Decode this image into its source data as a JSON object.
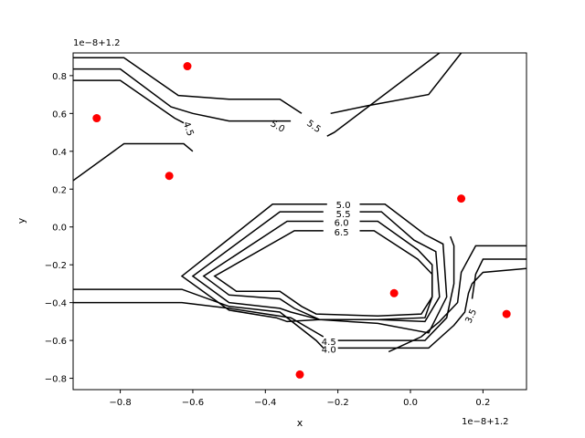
{
  "chart_data": {
    "type": "contour",
    "xlabel": "x",
    "ylabel": "y",
    "x_offset_label": "1e−8+1.2",
    "y_offset_label": "1e−8+1.2",
    "xlim": [
      -0.93,
      0.32
    ],
    "ylim": [
      -0.86,
      0.92
    ],
    "x_ticks": [
      -0.8,
      -0.6,
      -0.4,
      -0.2,
      0.0,
      0.2
    ],
    "x_tick_labels": [
      "−0.8",
      "−0.6",
      "−0.4",
      "−0.2",
      "0.0",
      "0.2"
    ],
    "y_ticks": [
      -0.8,
      -0.6,
      -0.4,
      -0.2,
      0.0,
      0.2,
      0.4,
      0.6,
      0.8
    ],
    "y_tick_labels": [
      "−0.8",
      "−0.6",
      "−0.4",
      "−0.2",
      "0.0",
      "0.2",
      "0.4",
      "0.6",
      "0.8"
    ],
    "grid": false,
    "contour_color": "#000000",
    "point_color": "#ff0000",
    "points": {
      "x": [
        -0.865,
        -0.615,
        -0.665,
        -0.045,
        0.14,
        0.265,
        -0.305
      ],
      "y": [
        0.575,
        0.85,
        0.27,
        -0.35,
        0.15,
        -0.46,
        -0.78
      ]
    },
    "contour_lines": [
      {
        "level": "4.5",
        "points": [
          [
            -0.93,
            0.775
          ],
          [
            -0.8,
            0.775
          ],
          [
            -0.65,
            0.575
          ],
          [
            -0.625,
            0.55
          ]
        ]
      },
      {
        "level": "4.5",
        "points": [
          [
            -0.6,
            0.4
          ],
          [
            -0.625,
            0.44
          ],
          [
            -0.79,
            0.44
          ],
          [
            -0.93,
            0.245
          ]
        ]
      },
      {
        "level": "5.0",
        "points": [
          [
            -0.93,
            0.835
          ],
          [
            -0.8,
            0.835
          ],
          [
            -0.66,
            0.635
          ],
          [
            -0.6,
            0.6
          ],
          [
            -0.5,
            0.56
          ],
          [
            -0.33,
            0.56
          ]
        ]
      },
      {
        "level": "5.0",
        "points": [
          [
            -0.22,
            0.6
          ],
          [
            -0.12,
            0.64
          ],
          [
            0.05,
            0.7
          ],
          [
            0.14,
            0.92
          ]
        ]
      },
      {
        "level": "5.5",
        "points": [
          [
            -0.93,
            0.895
          ],
          [
            -0.79,
            0.895
          ],
          [
            -0.64,
            0.695
          ],
          [
            -0.5,
            0.675
          ],
          [
            -0.36,
            0.675
          ],
          [
            -0.3,
            0.6
          ]
        ]
      },
      {
        "level": "5.5",
        "points": [
          [
            -0.23,
            0.48
          ],
          [
            -0.21,
            0.5
          ],
          [
            0.08,
            0.92
          ]
        ]
      },
      {
        "level": "3.5",
        "points": [
          [
            0.32,
            -0.1
          ],
          [
            0.18,
            -0.1
          ],
          [
            0.14,
            -0.24
          ],
          [
            0.13,
            -0.4
          ],
          [
            0.08,
            -0.5
          ],
          [
            0.03,
            -0.58
          ],
          [
            -0.06,
            -0.66
          ]
        ]
      },
      {
        "level": "3.5",
        "points": [
          [
            0.32,
            -0.17
          ],
          [
            0.2,
            -0.17
          ],
          [
            0.18,
            -0.25
          ],
          [
            0.17,
            -0.38
          ]
        ]
      },
      {
        "level": "4.0",
        "points": [
          [
            -0.93,
            -0.33
          ],
          [
            -0.63,
            -0.33
          ],
          [
            -0.5,
            -0.42
          ],
          [
            -0.36,
            -0.45
          ],
          [
            -0.26,
            -0.6
          ],
          [
            -0.24,
            -0.64
          ]
        ]
      },
      {
        "level": "4.0",
        "points": [
          [
            -0.2,
            -0.64
          ],
          [
            -0.1,
            -0.64
          ],
          [
            0.05,
            -0.64
          ],
          [
            0.12,
            -0.52
          ],
          [
            0.15,
            -0.45
          ],
          [
            0.16,
            -0.35
          ],
          [
            0.17,
            -0.3
          ],
          [
            0.2,
            -0.24
          ],
          [
            0.32,
            -0.22
          ]
        ]
      },
      {
        "level": "4.5",
        "points": [
          [
            -0.93,
            -0.4
          ],
          [
            -0.63,
            -0.4
          ],
          [
            -0.5,
            -0.43
          ],
          [
            -0.33,
            -0.48
          ],
          [
            -0.24,
            -0.58
          ]
        ]
      },
      {
        "level": "4.5",
        "points": [
          [
            -0.2,
            -0.6
          ],
          [
            0.04,
            -0.6
          ],
          [
            0.1,
            -0.48
          ],
          [
            0.12,
            -0.3
          ],
          [
            0.12,
            -0.1
          ],
          [
            0.11,
            -0.05
          ]
        ]
      },
      {
        "level": "5.0",
        "points": [
          [
            -0.23,
            0.12
          ],
          [
            -0.38,
            0.12
          ],
          [
            -0.63,
            -0.26
          ],
          [
            -0.5,
            -0.44
          ],
          [
            -0.37,
            -0.48
          ],
          [
            -0.34,
            -0.5
          ],
          [
            -0.25,
            -0.49
          ],
          [
            -0.09,
            -0.51
          ],
          [
            0.05,
            -0.56
          ],
          [
            0.1,
            -0.37
          ],
          [
            0.09,
            -0.09
          ],
          [
            0.04,
            -0.04
          ],
          [
            -0.07,
            0.12
          ],
          [
            -0.14,
            0.12
          ]
        ]
      },
      {
        "level": "5.5",
        "points": [
          [
            -0.24,
            0.08
          ],
          [
            -0.36,
            0.08
          ],
          [
            -0.6,
            -0.26
          ],
          [
            -0.5,
            -0.4
          ],
          [
            -0.36,
            -0.43
          ],
          [
            -0.33,
            -0.45
          ],
          [
            -0.25,
            -0.49
          ],
          [
            -0.09,
            -0.49
          ],
          [
            0.04,
            -0.5
          ],
          [
            0.08,
            -0.37
          ],
          [
            0.07,
            -0.13
          ],
          [
            0.01,
            -0.07
          ],
          [
            -0.08,
            0.08
          ],
          [
            -0.14,
            0.08
          ]
        ]
      },
      {
        "level": "6.0",
        "points": [
          [
            -0.24,
            0.03
          ],
          [
            -0.34,
            0.03
          ],
          [
            -0.57,
            -0.26
          ],
          [
            -0.5,
            -0.36
          ],
          [
            -0.36,
            -0.38
          ],
          [
            -0.32,
            -0.43
          ],
          [
            -0.25,
            -0.49
          ],
          [
            -0.09,
            -0.49
          ],
          [
            0.04,
            -0.48
          ],
          [
            0.06,
            -0.37
          ],
          [
            0.06,
            -0.2
          ],
          [
            0.02,
            -0.12
          ],
          [
            -0.09,
            0.03
          ],
          [
            -0.14,
            0.03
          ]
        ]
      },
      {
        "level": "6.5",
        "points": [
          [
            -0.24,
            -0.02
          ],
          [
            -0.32,
            -0.02
          ],
          [
            -0.54,
            -0.26
          ],
          [
            -0.48,
            -0.34
          ],
          [
            -0.36,
            -0.34
          ],
          [
            -0.3,
            -0.42
          ],
          [
            -0.26,
            -0.46
          ],
          [
            -0.09,
            -0.47
          ],
          [
            0.03,
            -0.46
          ],
          [
            0.06,
            -0.37
          ],
          [
            0.06,
            -0.25
          ],
          [
            0.02,
            -0.17
          ],
          [
            -0.1,
            -0.02
          ],
          [
            -0.14,
            -0.02
          ]
        ]
      }
    ],
    "contour_labels": [
      {
        "text": "4.5",
        "x": -0.61,
        "y": 0.52,
        "angle": 70
      },
      {
        "text": "5.0",
        "x": -0.365,
        "y": 0.535,
        "angle": 30
      },
      {
        "text": "5.5",
        "x": -0.265,
        "y": 0.535,
        "angle": 35
      },
      {
        "text": "5.0",
        "x": -0.185,
        "y": 0.12,
        "angle": 0
      },
      {
        "text": "5.5",
        "x": -0.185,
        "y": 0.07,
        "angle": 0
      },
      {
        "text": "6.0",
        "x": -0.19,
        "y": 0.025,
        "angle": 0
      },
      {
        "text": "6.5",
        "x": -0.19,
        "y": -0.025,
        "angle": 0
      },
      {
        "text": "4.5",
        "x": -0.225,
        "y": -0.605,
        "angle": 0
      },
      {
        "text": "4.0",
        "x": -0.225,
        "y": -0.645,
        "angle": 0
      },
      {
        "text": "3.5",
        "x": 0.165,
        "y": -0.47,
        "angle": -65
      }
    ]
  }
}
